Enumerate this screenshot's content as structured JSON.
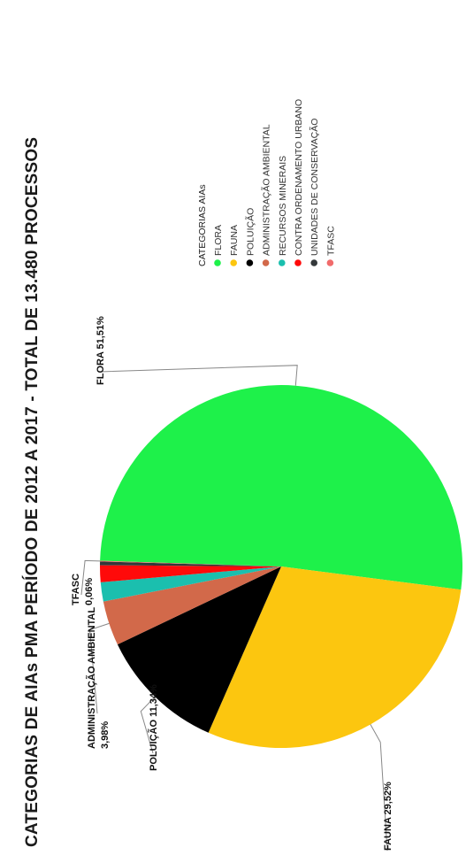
{
  "chart_data": {
    "type": "pie",
    "title": "CATEGORIAS DE AIAs PMA PERÍODO DE 2012 A 2017 - TOTAL DE 13.480 PROCESSOS",
    "legend": {
      "title": "CATEGORIAS AIAs",
      "placement": "top-right"
    },
    "orientation": "rotated-90-ccw",
    "slices": [
      {
        "label": "FLORA",
        "value": 51.51,
        "data_label": "FLORA 51,51%",
        "color": "#1ef14a"
      },
      {
        "label": "FAUNA",
        "value": 29.52,
        "data_label": "FAUNA 29,52%",
        "color": "#fcc60f"
      },
      {
        "label": "POLUIÇÃO",
        "value": 11.34,
        "data_label": "POLUIÇÃO 11,34%",
        "color": "#000000"
      },
      {
        "label": "ADMINISTRAÇÃO AMBIENTAL",
        "value": 3.98,
        "data_label": [
          "ADMINISTRAÇÃO AMBIENTAL",
          "3,98%"
        ],
        "color": "#d2694a"
      },
      {
        "label": "RECURSOS MINERAIS",
        "value": 1.7,
        "data_label": null,
        "color": "#1bbfae"
      },
      {
        "label": "CONTRA ORDENAMENTO URBANO",
        "value": 1.5,
        "data_label": null,
        "color": "#ff0a0a"
      },
      {
        "label": "UNIDADES DE CONSERVAÇÃO",
        "value": 0.33,
        "data_label": null,
        "color": "#33383a"
      },
      {
        "label": "TFASC",
        "value": 0.06,
        "data_label": [
          "TFASC",
          "0,06%"
        ],
        "color": "#f16b6b"
      }
    ]
  }
}
